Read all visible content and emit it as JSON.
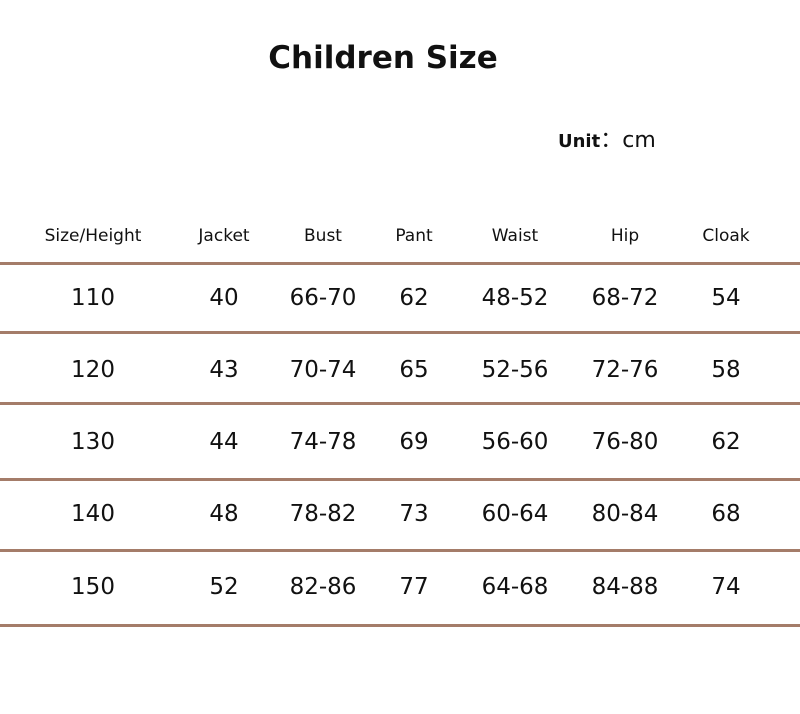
{
  "header": {
    "title": "Children Size",
    "unit_label": "Unit",
    "unit_value": "：cm"
  },
  "table": {
    "columns": [
      "Size/Height",
      "Jacket",
      "Bust",
      "Pant",
      "Waist",
      "Hip",
      "Cloak"
    ],
    "rows": [
      [
        "110",
        "40",
        "66-70",
        "62",
        "48-52",
        "68-72",
        "54"
      ],
      [
        "120",
        "43",
        "70-74",
        "65",
        "52-56",
        "72-76",
        "58"
      ],
      [
        "130",
        "44",
        "74-78",
        "69",
        "56-60",
        "76-80",
        "62"
      ],
      [
        "140",
        "48",
        "78-82",
        "73",
        "60-64",
        "80-84",
        "68"
      ],
      [
        "150",
        "52",
        "82-86",
        "77",
        "64-68",
        "84-88",
        "74"
      ]
    ]
  }
}
